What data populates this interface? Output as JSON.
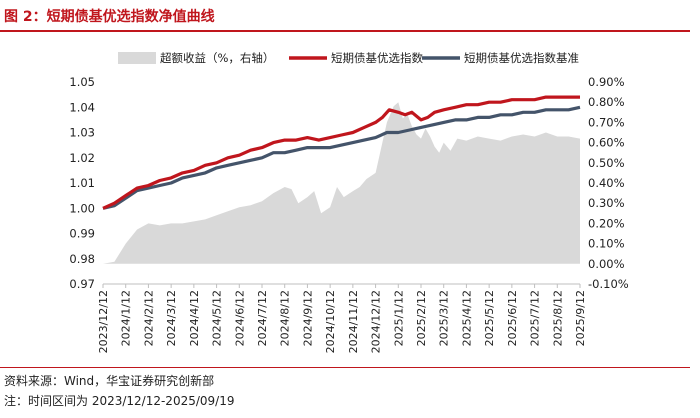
{
  "header": {
    "title": "图 2：短期债基优选指数净值曲线"
  },
  "footer": {
    "source": "资料来源：Wind，华宝证券研究创新部",
    "note": "注：时间区间为 2023/12/12-2025/09/19"
  },
  "colors": {
    "brand_red": "#c0161d",
    "series_area": "#d9d9d9",
    "series_index": "#c0161d",
    "series_benchmark": "#44546a"
  },
  "chart_data": {
    "type": "line",
    "legend_position": "top",
    "grid": false,
    "x_labels": [
      "2023/12/12",
      "2024/1/12",
      "2024/2/12",
      "2024/3/12",
      "2024/4/12",
      "2024/5/12",
      "2024/6/12",
      "2024/7/12",
      "2024/8/12",
      "2024/9/12",
      "2024/10/12",
      "2024/11/12",
      "2024/12/12",
      "2025/1/12",
      "2025/2/12",
      "2025/3/12",
      "2025/4/12",
      "2025/5/12",
      "2025/6/12",
      "2025/7/12",
      "2025/8/12",
      "2025/9/12"
    ],
    "y_left": {
      "ylim": [
        0.97,
        1.05
      ],
      "ticks": [
        "0.97",
        "0.98",
        "0.99",
        "1.00",
        "1.01",
        "1.02",
        "1.03",
        "1.04",
        "1.05"
      ]
    },
    "y_right": {
      "ylim": [
        -0.1,
        0.9
      ],
      "ticks": [
        "-0.10%",
        "0.00%",
        "0.10%",
        "0.20%",
        "0.30%",
        "0.40%",
        "0.50%",
        "0.60%",
        "0.70%",
        "0.80%",
        "0.90%"
      ]
    },
    "series": [
      {
        "name": "超额收益（%，右轴）",
        "type": "area",
        "axis": "right",
        "x": [
          0,
          0.1,
          0.5,
          1,
          1.5,
          2,
          2.5,
          3,
          3.5,
          4,
          4.5,
          5,
          5.5,
          6,
          6.5,
          7,
          7.5,
          8,
          8.3,
          8.6,
          9,
          9.3,
          9.6,
          10,
          10.3,
          10.6,
          11,
          11.3,
          11.6,
          12,
          12.2,
          12.5,
          12.8,
          13,
          13.2,
          13.4,
          13.6,
          13.8,
          14,
          14.2,
          14.4,
          14.6,
          14.8,
          15,
          15.3,
          15.6,
          16,
          16.5,
          17,
          17.5,
          18,
          18.5,
          19,
          19.5,
          20,
          20.5,
          21
        ],
        "y": [
          0,
          0.002,
          0.01,
          0.1,
          0.17,
          0.2,
          0.19,
          0.2,
          0.2,
          0.21,
          0.22,
          0.24,
          0.26,
          0.28,
          0.29,
          0.31,
          0.35,
          0.38,
          0.37,
          0.3,
          0.33,
          0.36,
          0.25,
          0.28,
          0.38,
          0.33,
          0.36,
          0.38,
          0.42,
          0.45,
          0.55,
          0.7,
          0.78,
          0.8,
          0.72,
          0.74,
          0.68,
          0.64,
          0.62,
          0.67,
          0.63,
          0.58,
          0.55,
          0.6,
          0.56,
          0.62,
          0.61,
          0.63,
          0.62,
          0.61,
          0.63,
          0.64,
          0.63,
          0.65,
          0.63,
          0.63,
          0.62
        ]
      },
      {
        "name": "短期债基优选指数",
        "type": "line",
        "axis": "left",
        "x": [
          0,
          0.5,
          1,
          1.5,
          2,
          2.5,
          3,
          3.5,
          4,
          4.5,
          5,
          5.5,
          6,
          6.5,
          7,
          7.5,
          8,
          8.5,
          9,
          9.5,
          10,
          10.5,
          11,
          11.5,
          12,
          12.3,
          12.6,
          13,
          13.3,
          13.6,
          14,
          14.3,
          14.6,
          15,
          15.5,
          16,
          16.5,
          17,
          17.5,
          18,
          18.5,
          19,
          19.5,
          20,
          20.5,
          21
        ],
        "y": [
          1.0,
          1.002,
          1.005,
          1.008,
          1.009,
          1.011,
          1.012,
          1.014,
          1.015,
          1.017,
          1.018,
          1.02,
          1.021,
          1.023,
          1.024,
          1.026,
          1.027,
          1.027,
          1.028,
          1.027,
          1.028,
          1.029,
          1.03,
          1.032,
          1.034,
          1.036,
          1.039,
          1.038,
          1.037,
          1.038,
          1.035,
          1.036,
          1.038,
          1.039,
          1.04,
          1.041,
          1.041,
          1.042,
          1.042,
          1.043,
          1.043,
          1.043,
          1.044,
          1.044,
          1.044,
          1.044
        ]
      },
      {
        "name": "短期债基优选指数基准",
        "type": "line",
        "axis": "left",
        "x": [
          0,
          0.5,
          1,
          1.5,
          2,
          2.5,
          3,
          3.5,
          4,
          4.5,
          5,
          5.5,
          6,
          6.5,
          7,
          7.5,
          8,
          8.5,
          9,
          9.5,
          10,
          10.5,
          11,
          11.5,
          12,
          12.5,
          13,
          13.5,
          14,
          14.5,
          15,
          15.5,
          16,
          16.5,
          17,
          17.5,
          18,
          18.5,
          19,
          19.5,
          20,
          20.5,
          21
        ],
        "y": [
          1.0,
          1.001,
          1.004,
          1.007,
          1.008,
          1.009,
          1.01,
          1.012,
          1.013,
          1.014,
          1.016,
          1.017,
          1.018,
          1.019,
          1.02,
          1.022,
          1.022,
          1.023,
          1.024,
          1.024,
          1.024,
          1.025,
          1.026,
          1.027,
          1.028,
          1.03,
          1.03,
          1.031,
          1.032,
          1.033,
          1.034,
          1.035,
          1.035,
          1.036,
          1.036,
          1.037,
          1.037,
          1.038,
          1.038,
          1.039,
          1.039,
          1.039,
          1.04
        ]
      }
    ]
  }
}
